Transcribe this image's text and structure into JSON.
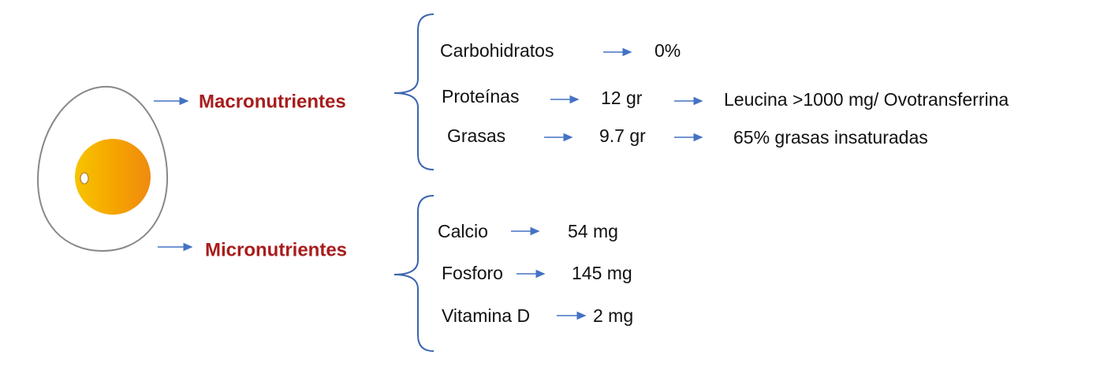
{
  "groups": [
    {
      "label": "Macronutrientes",
      "items": [
        {
          "name": "Carbohidratos",
          "amount": "0%"
        },
        {
          "name": "Proteínas",
          "amount": "12 gr",
          "detail": "Leucina >1000 mg/ Ovotransferrina"
        },
        {
          "name": "Grasas",
          "amount": "9.7 gr",
          "detail": "65% grasas insaturadas"
        }
      ]
    },
    {
      "label": "Micronutrientes",
      "items": [
        {
          "name": "Calcio",
          "amount": "54 mg"
        },
        {
          "name": "Fosforo",
          "amount": "145 mg"
        },
        {
          "name": "Vitamina D",
          "amount": "2 mg"
        }
      ]
    }
  ]
}
